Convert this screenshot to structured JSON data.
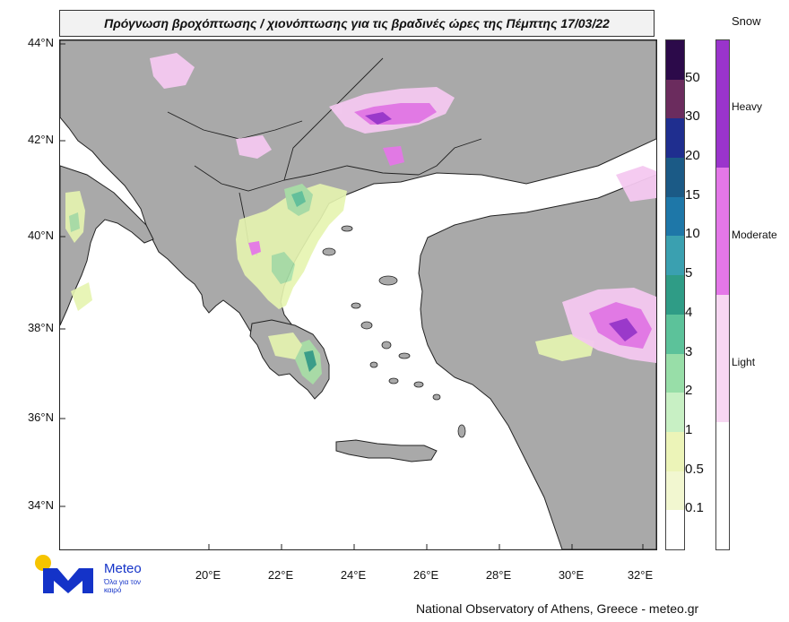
{
  "title": "Πρόγνωση βροχόπτωσης / χιονόπτωσης για τις βραδινές ώρες της Πέμπτης 17/03/22",
  "lat_labels": [
    "44°N",
    "42°N",
    "40°N",
    "38°N",
    "36°N",
    "34°N"
  ],
  "lon_labels": [
    "20°E",
    "22°E",
    "24°E",
    "26°E",
    "28°E",
    "30°E",
    "32°E"
  ],
  "rain_legend": {
    "labels": [
      "50",
      "30",
      "20",
      "15",
      "10",
      "5",
      "4",
      "3",
      "2",
      "1",
      "0.5",
      "0.1"
    ],
    "colors": [
      "#2c0a4a",
      "#6b2c5e",
      "#1f2e8f",
      "#1b5a86",
      "#1e77a8",
      "#3aa0b0",
      "#2f9c86",
      "#5cc29a",
      "#98dea8",
      "#c8f0c4",
      "#ecf4b8",
      "#f2f7d0",
      "#ffffff"
    ]
  },
  "snow_legend": {
    "title": "Snow",
    "labels": [
      "Heavy",
      "Moderate",
      "Light"
    ],
    "colors": [
      "#9a34cc",
      "#e477e8",
      "#f7d7f2",
      "#ffffff"
    ]
  },
  "logo": {
    "brand": "Meteo",
    "tagline": "Όλα για τον καιρό"
  },
  "footer": "National Observatory of Athens, Greece - meteo.gr",
  "colors": {
    "land": "#a9a9a9",
    "sea": "#ffffff",
    "rain_light": "#e6f5b0",
    "rain_mid": "#a8e0a6",
    "snow_moderate": "#e477e8",
    "snow_light": "#f4c8f0",
    "snow_heavy": "#9a34cc"
  }
}
